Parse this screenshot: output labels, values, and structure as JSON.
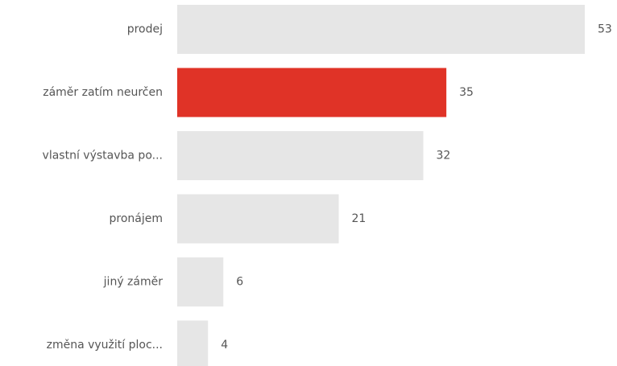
{
  "chart_data": {
    "type": "hbar",
    "categories": [
      "prodej",
      "záměr zatím neurčen",
      "vlastní výstavba po...",
      "pronájem",
      "jiný záměr",
      "změna využití ploc..."
    ],
    "values": [
      53,
      35,
      32,
      21,
      6,
      4
    ],
    "colors": [
      "#e6e6e6",
      "#e03327",
      "#e6e6e6",
      "#e6e6e6",
      "#e6e6e6",
      "#e6e6e6"
    ],
    "xlim": [
      0,
      53
    ]
  }
}
